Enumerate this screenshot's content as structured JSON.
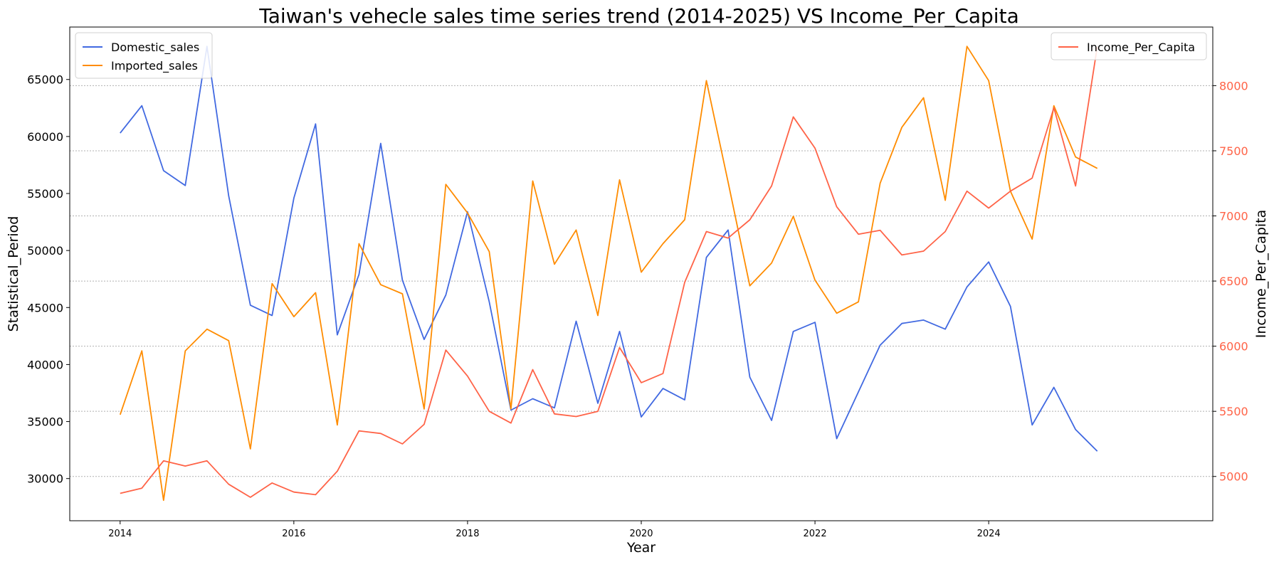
{
  "chart_data": {
    "type": "line",
    "title": "Taiwan's vehecle sales time series trend (2014-2025) VS Income_Per_Capita",
    "xlabel": "Year",
    "ylabel": "Statistical_Period",
    "y2label": "Income_Per_Capita",
    "xlim": [
      2013.42,
      2026.58
    ],
    "ylim": [
      26300,
      69600
    ],
    "y2lim": [
      4660,
      8450
    ],
    "xticks": [
      2014,
      2016,
      2018,
      2020,
      2022,
      2024
    ],
    "yticks": [
      30000,
      35000,
      40000,
      45000,
      50000,
      55000,
      60000,
      65000
    ],
    "y2ticks": [
      5000,
      5500,
      6000,
      6500,
      7000,
      7500,
      8000
    ],
    "grid": true,
    "legend_left": "top-left",
    "legend_right": "top-right",
    "x": [
      2014.0,
      2014.25,
      2014.5,
      2014.75,
      2015.0,
      2015.25,
      2015.5,
      2015.75,
      2016.0,
      2016.25,
      2016.5,
      2016.75,
      2017.0,
      2017.25,
      2017.5,
      2017.75,
      2018.0,
      2018.25,
      2018.5,
      2018.75,
      2019.0,
      2019.25,
      2019.5,
      2019.75,
      2020.0,
      2020.25,
      2020.5,
      2020.75,
      2021.0,
      2021.25,
      2021.5,
      2021.75,
      2022.0,
      2022.25,
      2022.5,
      2022.75,
      2023.0,
      2023.25,
      2023.5,
      2023.75,
      2024.0,
      2024.25,
      2024.5,
      2024.75,
      2025.0,
      2025.25
    ],
    "series": [
      {
        "name": "Domestic_sales",
        "axis": "left",
        "color": "#4169E1",
        "values": [
          60300,
          62700,
          57000,
          55700,
          67900,
          54800,
          45200,
          44300,
          54600,
          61100,
          42600,
          47900,
          59400,
          47400,
          42200,
          46100,
          53400,
          45500,
          36000,
          37000,
          36200,
          43800,
          36600,
          42900,
          35400,
          37900,
          36900,
          49400,
          51800,
          38900,
          35100,
          42900,
          43700,
          33500,
          37600,
          41700,
          43600,
          43900,
          43100,
          46800,
          49000,
          45100,
          34700,
          38000,
          34300,
          32400
        ]
      },
      {
        "name": "Imported_sales",
        "axis": "left",
        "color": "#FF8C00",
        "values": [
          35600,
          41200,
          28100,
          41200,
          43100,
          42100,
          32600,
          47100,
          44200,
          46300,
          34700,
          50600,
          47000,
          46200,
          36100,
          55800,
          53300,
          49900,
          36100,
          56100,
          48800,
          51800,
          44300,
          56200,
          48100,
          50600,
          52700,
          64900,
          56000,
          46900,
          48900,
          53000,
          47400,
          44500,
          45500,
          55900,
          60800,
          63400,
          54400,
          67900,
          64900,
          55200,
          51000,
          62700,
          58200,
          57200
        ]
      },
      {
        "name": "Income_Per_Capita",
        "axis": "right",
        "color": "#FF6347",
        "values": [
          4870,
          4910,
          5120,
          5080,
          5120,
          4940,
          4840,
          4950,
          4880,
          4860,
          5040,
          5350,
          5330,
          5250,
          5400,
          5970,
          5770,
          5500,
          5410,
          5820,
          5480,
          5460,
          5500,
          5990,
          5720,
          5790,
          6490,
          6880,
          6830,
          6970,
          7230,
          7760,
          7520,
          7070,
          6860,
          6890,
          6700,
          6730,
          6880,
          7190,
          7060,
          7190,
          7290,
          7830,
          7230,
          8300
        ]
      }
    ]
  }
}
